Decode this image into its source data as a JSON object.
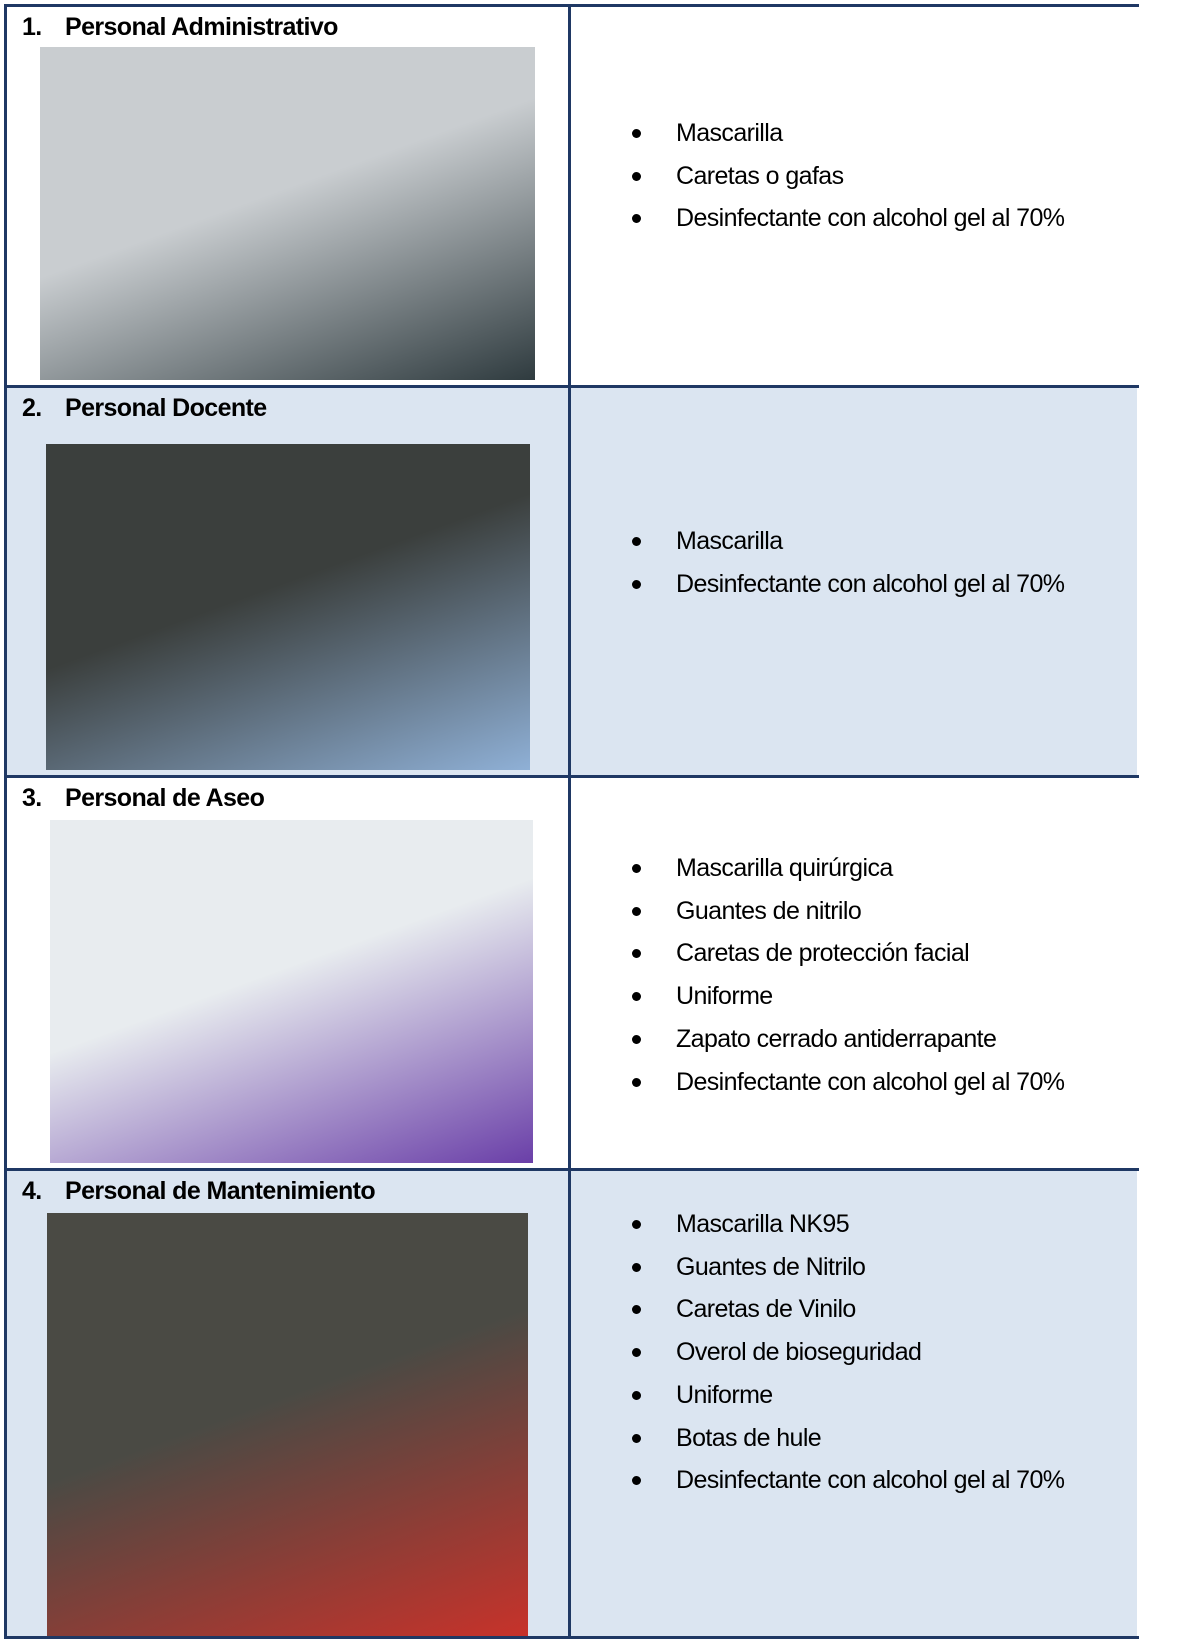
{
  "rows": [
    {
      "number": "1.",
      "title": "Personal Administrativo",
      "items": [
        "Mascarilla",
        "Caretas o gafas",
        "Desinfectante con alcohol gel al 70%"
      ]
    },
    {
      "number": "2.",
      "title": "Personal Docente",
      "items": [
        "Mascarilla",
        "Desinfectante con alcohol gel al 70%"
      ]
    },
    {
      "number": "3.",
      "title": "Personal de Aseo",
      "items": [
        "Mascarilla quirúrgica",
        "Guantes de nitrilo",
        "Caretas de protección facial",
        "Uniforme",
        "Zapato cerrado antiderrapante",
        "Desinfectante con alcohol gel al 70%"
      ]
    },
    {
      "number": "4.",
      "title": "Personal de Mantenimiento",
      "items": [
        "Mascarilla NK95",
        "Guantes de Nitrilo",
        "Caretas de Vinilo",
        "Overol de bioseguridad",
        "Uniforme",
        "Botas de hule",
        "Desinfectante con alcohol gel al 70%"
      ]
    }
  ]
}
